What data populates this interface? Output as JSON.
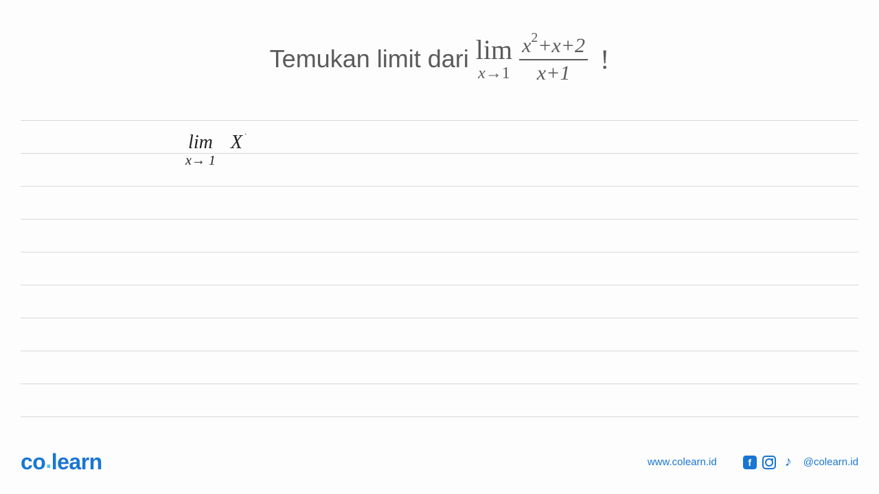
{
  "question": {
    "prefix_text": "Temukan limit dari",
    "limit_word": "lim",
    "limit_sub_var": "x",
    "limit_sub_arrow": "→",
    "limit_sub_val": "1",
    "fraction": {
      "numerator_var": "x",
      "numerator_exp": "2",
      "numerator_rest": "+x+2",
      "denominator": "x+1"
    },
    "suffix": "!"
  },
  "handwriting": {
    "lim_word": "lim",
    "lim_sub": "x→ 1",
    "term": "X",
    "term_sup": "·"
  },
  "ruled_lines": {
    "count": 10,
    "start_top": 0,
    "spacing": 48,
    "color": "#d8d8d8"
  },
  "footer": {
    "logo_co": "co",
    "logo_dot": ".",
    "logo_learn": "learn",
    "website": "www.colearn.id",
    "handle": "@colearn.id",
    "icons": {
      "facebook": "f",
      "tiktok": "♪"
    }
  },
  "colors": {
    "text_gray": "#5a5a5a",
    "brand_blue": "#1976d2",
    "light_blue": "#4fc3f7",
    "line_gray": "#d8d8d8",
    "bg": "#fdfdfd",
    "handwriting": "#222222"
  }
}
